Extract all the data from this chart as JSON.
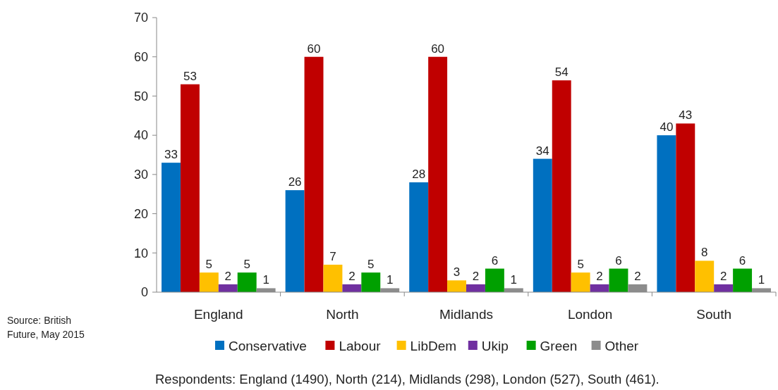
{
  "chart_data": {
    "type": "bar",
    "categories": [
      "England",
      "North",
      "Midlands",
      "London",
      "South"
    ],
    "series": [
      {
        "name": "Conservative",
        "color": "#0070c0",
        "values": [
          33,
          26,
          28,
          34,
          40
        ]
      },
      {
        "name": "Labour",
        "color": "#c00000",
        "values": [
          53,
          60,
          60,
          54,
          43
        ]
      },
      {
        "name": "LibDem",
        "color": "#ffc000",
        "values": [
          5,
          7,
          3,
          5,
          8
        ]
      },
      {
        "name": "Ukip",
        "color": "#7030a0",
        "values": [
          2,
          2,
          2,
          2,
          2
        ]
      },
      {
        "name": "Green",
        "color": "#00a000",
        "values": [
          5,
          5,
          6,
          6,
          6
        ]
      },
      {
        "name": "Other",
        "color": "#8c8c8c",
        "values": [
          1,
          1,
          1,
          2,
          1
        ]
      }
    ],
    "ylim": [
      0,
      70
    ],
    "yticks": [
      0,
      10,
      20,
      30,
      40,
      50,
      60,
      70
    ],
    "data_labels": true,
    "legend": "bottom",
    "grid": false,
    "annotations": [
      "Source: British Future, May 2015",
      "Respondents: England (1490), North (214), Midlands (298), London (527), South (461)."
    ]
  }
}
